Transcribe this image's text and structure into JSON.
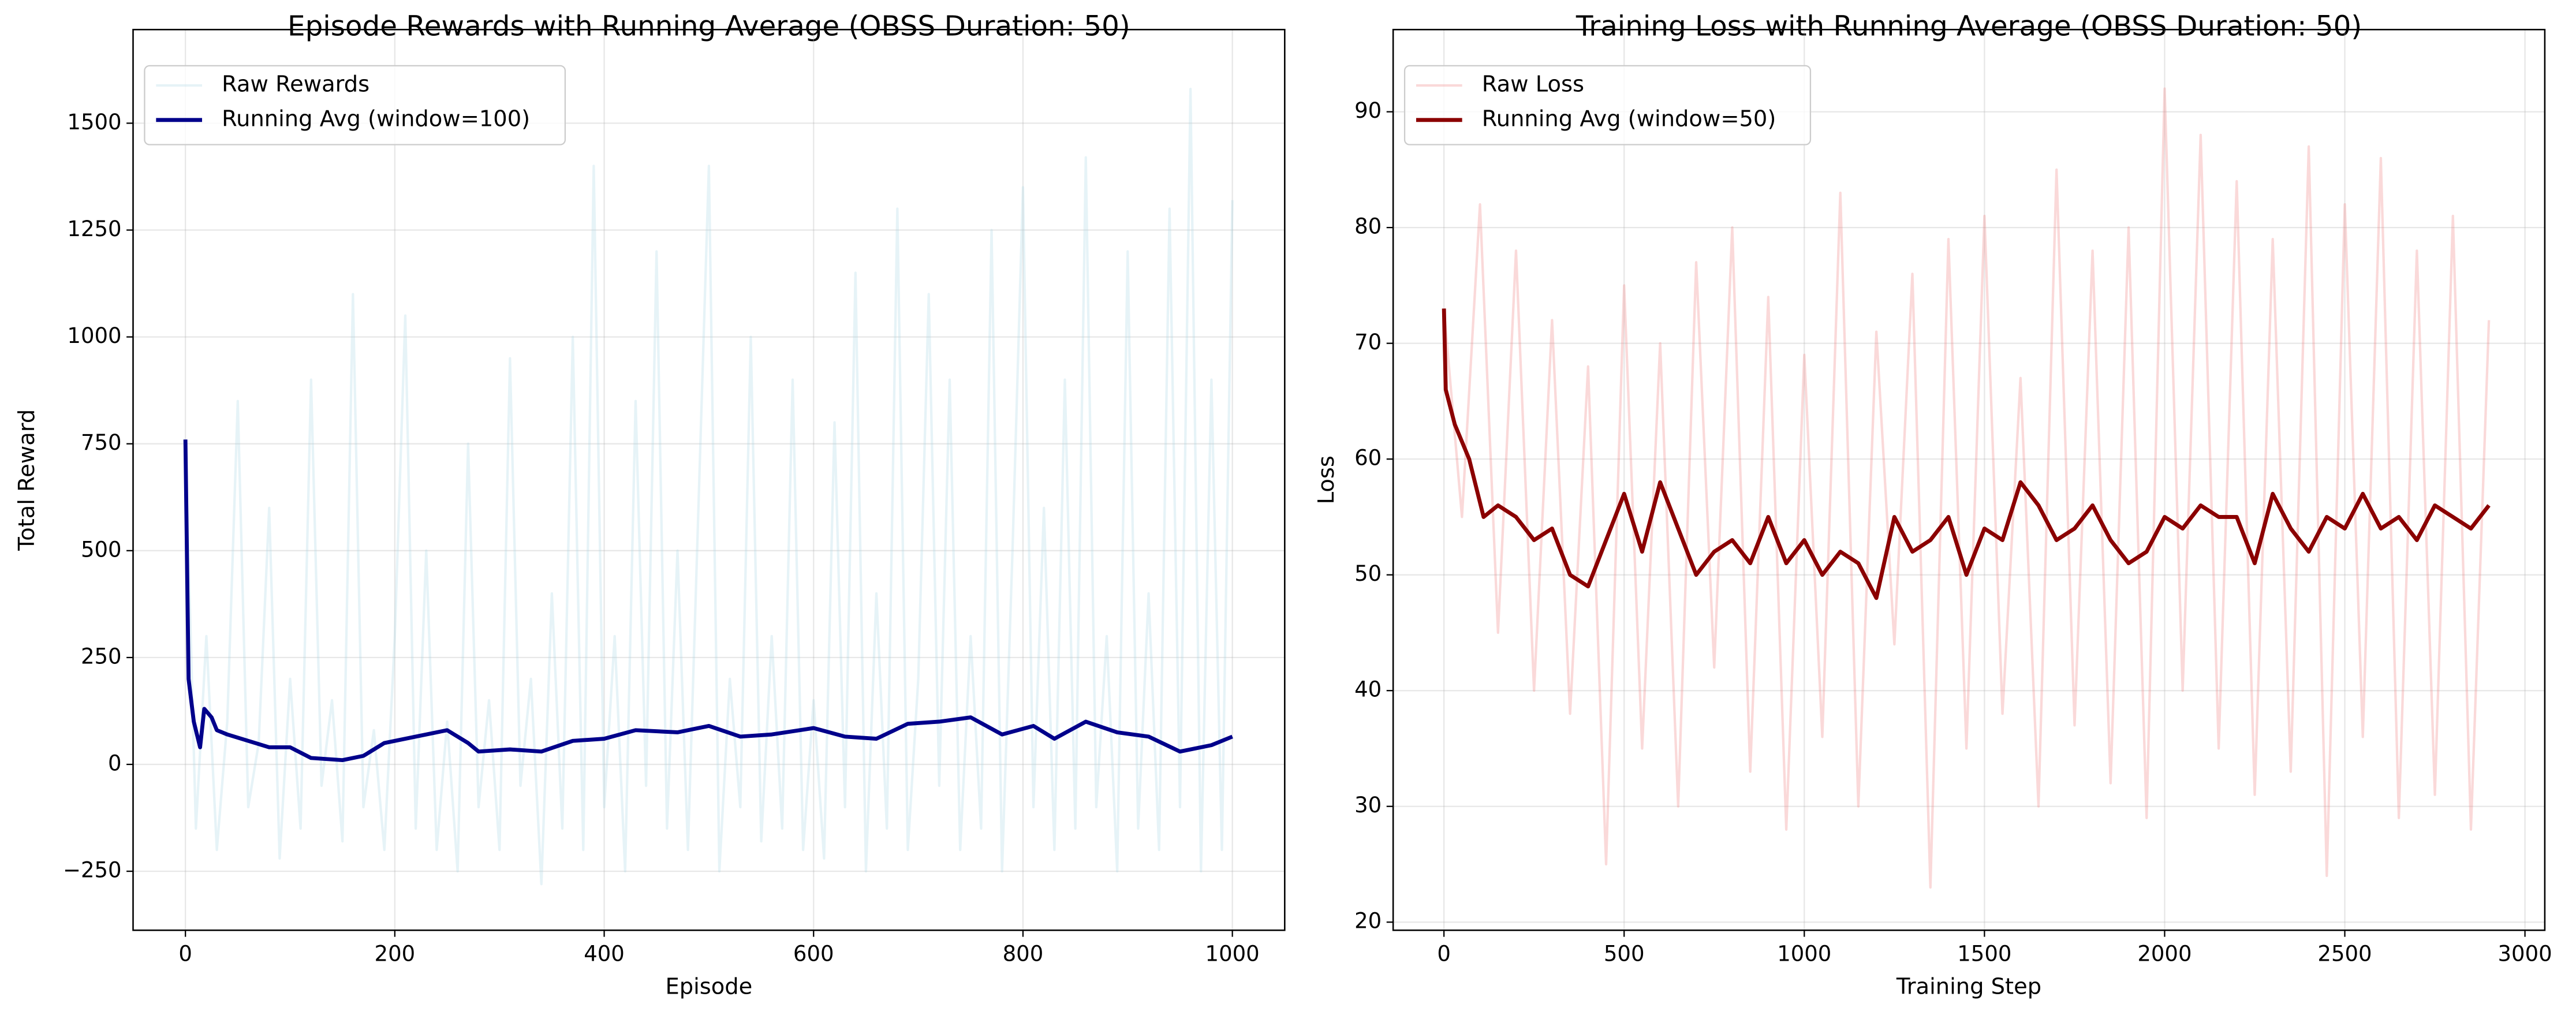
{
  "chart_data": [
    {
      "type": "line",
      "title": "Episode Rewards with Running Average (OBSS Duration: 50)",
      "xlabel": "Episode",
      "ylabel": "Total Reward",
      "xlim": [
        -50,
        1050
      ],
      "ylim": [
        -388,
        1719
      ],
      "xticks": [
        0,
        200,
        400,
        600,
        800,
        1000
      ],
      "yticks": [
        {
          "value": -250,
          "label": "−250"
        },
        0,
        250,
        500,
        750,
        1000,
        1250,
        1500
      ],
      "grid": true,
      "legend": "upper left",
      "series": [
        {
          "name": "Raw Rewards",
          "color": "#add8e6",
          "alpha": 0.3,
          "x": [
            0,
            10,
            20,
            30,
            40,
            50,
            60,
            70,
            80,
            90,
            100,
            110,
            120,
            130,
            140,
            150,
            160,
            170,
            180,
            190,
            200,
            210,
            220,
            230,
            240,
            250,
            260,
            270,
            280,
            290,
            300,
            310,
            320,
            330,
            340,
            350,
            360,
            370,
            380,
            390,
            400,
            410,
            420,
            430,
            440,
            450,
            460,
            470,
            480,
            490,
            500,
            510,
            520,
            530,
            540,
            550,
            560,
            570,
            580,
            590,
            600,
            610,
            620,
            630,
            640,
            650,
            660,
            670,
            680,
            690,
            700,
            710,
            720,
            730,
            740,
            750,
            760,
            770,
            780,
            790,
            800,
            810,
            820,
            830,
            840,
            850,
            860,
            870,
            880,
            890,
            900,
            910,
            920,
            930,
            940,
            950,
            960,
            970,
            980,
            990,
            1000
          ],
          "values": [
            760,
            -150,
            300,
            -200,
            100,
            850,
            -100,
            50,
            600,
            -220,
            200,
            -150,
            900,
            -50,
            150,
            -180,
            1100,
            -100,
            80,
            -200,
            300,
            1050,
            -150,
            500,
            -200,
            100,
            -250,
            750,
            -100,
            150,
            -200,
            950,
            -50,
            200,
            -280,
            400,
            -150,
            1000,
            -200,
            1400,
            -100,
            300,
            -250,
            850,
            -50,
            1200,
            -150,
            500,
            -200,
            600,
            1400,
            -250,
            200,
            -100,
            1000,
            -180,
            300,
            -150,
            900,
            -200,
            150,
            -220,
            800,
            -100,
            1150,
            -250,
            400,
            -150,
            1300,
            -200,
            200,
            1100,
            -50,
            900,
            -200,
            300,
            -150,
            1250,
            -250,
            500,
            1350,
            -100,
            600,
            -200,
            900,
            -150,
            1420,
            -100,
            300,
            -250,
            1200,
            -150,
            400,
            -200,
            1300,
            -100,
            1580,
            -250,
            900,
            -200,
            1320
          ]
        },
        {
          "name": "Running Avg (window=100)",
          "color": "#00008b",
          "alpha": 1,
          "x": [
            0,
            3,
            8,
            14,
            18,
            25,
            30,
            40,
            60,
            80,
            100,
            120,
            150,
            170,
            190,
            220,
            250,
            270,
            280,
            310,
            340,
            370,
            400,
            430,
            470,
            500,
            530,
            560,
            600,
            630,
            660,
            690,
            720,
            750,
            780,
            810,
            830,
            860,
            890,
            920,
            950,
            980,
            1000
          ],
          "values": [
            760,
            200,
            100,
            40,
            130,
            110,
            80,
            70,
            55,
            40,
            40,
            15,
            10,
            20,
            50,
            65,
            80,
            50,
            30,
            35,
            30,
            55,
            60,
            80,
            75,
            90,
            65,
            70,
            85,
            65,
            60,
            95,
            100,
            110,
            70,
            90,
            60,
            100,
            75,
            65,
            30,
            45,
            65
          ]
        }
      ]
    },
    {
      "type": "line",
      "title": "Training Loss with Running Average (OBSS Duration: 50)",
      "xlabel": "Training Step",
      "ylabel": "Loss",
      "xlim": [
        -141,
        3055
      ],
      "ylim": [
        19.3,
        97.1
      ],
      "xticks": [
        0,
        500,
        1000,
        1500,
        2000,
        2500,
        3000
      ],
      "yticks": [
        20,
        30,
        40,
        50,
        60,
        70,
        80,
        90
      ],
      "grid": true,
      "legend": "upper left",
      "series": [
        {
          "name": "Raw Loss",
          "color": "#f08080",
          "alpha": 0.3,
          "x": [
            0,
            50,
            100,
            150,
            200,
            250,
            300,
            350,
            400,
            450,
            500,
            550,
            600,
            650,
            700,
            750,
            800,
            850,
            900,
            950,
            1000,
            1050,
            1100,
            1150,
            1200,
            1250,
            1300,
            1350,
            1400,
            1450,
            1500,
            1550,
            1600,
            1650,
            1700,
            1750,
            1800,
            1850,
            1900,
            1950,
            2000,
            2050,
            2100,
            2150,
            2200,
            2250,
            2300,
            2350,
            2400,
            2450,
            2500,
            2550,
            2600,
            2650,
            2700,
            2750,
            2800,
            2850,
            2900
          ],
          "values": [
            73,
            55,
            82,
            45,
            78,
            40,
            72,
            38,
            68,
            25,
            75,
            35,
            70,
            30,
            77,
            42,
            80,
            33,
            74,
            28,
            69,
            36,
            83,
            30,
            71,
            44,
            76,
            23,
            79,
            35,
            81,
            38,
            67,
            30,
            85,
            37,
            78,
            32,
            80,
            29,
            92,
            40,
            88,
            35,
            84,
            31,
            79,
            33,
            87,
            24,
            82,
            36,
            86,
            29,
            78,
            31,
            81,
            28,
            72
          ]
        },
        {
          "name": "Running Avg (window=50)",
          "color": "#8b0000",
          "alpha": 1,
          "x": [
            0,
            5,
            30,
            70,
            110,
            150,
            200,
            250,
            300,
            350,
            400,
            450,
            500,
            550,
            600,
            650,
            700,
            750,
            800,
            850,
            900,
            950,
            1000,
            1050,
            1100,
            1150,
            1200,
            1250,
            1300,
            1350,
            1400,
            1450,
            1500,
            1550,
            1600,
            1650,
            1700,
            1750,
            1800,
            1850,
            1900,
            1950,
            2000,
            2050,
            2100,
            2150,
            2200,
            2250,
            2300,
            2350,
            2400,
            2450,
            2500,
            2550,
            2600,
            2650,
            2700,
            2750,
            2800,
            2850,
            2900
          ],
          "values": [
            73,
            66,
            63,
            60,
            55,
            56,
            55,
            53,
            54,
            50,
            49,
            53,
            57,
            52,
            58,
            54,
            50,
            52,
            53,
            51,
            55,
            51,
            53,
            50,
            52,
            51,
            48,
            55,
            52,
            53,
            55,
            50,
            54,
            53,
            58,
            56,
            53,
            54,
            56,
            53,
            51,
            52,
            55,
            54,
            56,
            55,
            55,
            51,
            57,
            54,
            52,
            55,
            54,
            57,
            54,
            55,
            53,
            56,
            55,
            54,
            56
          ]
        }
      ]
    }
  ]
}
